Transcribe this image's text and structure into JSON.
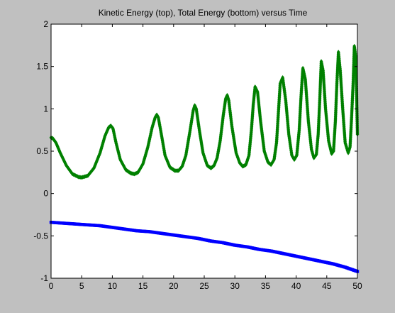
{
  "figure": {
    "background": "#c0c0c0",
    "axes_background": "#ffffff"
  },
  "chart_data": {
    "type": "line",
    "title": "Kinetic Energy (top), Total Energy (bottom) versus Time",
    "xlabel": "",
    "ylabel": "",
    "xlim": [
      0,
      50
    ],
    "ylim": [
      -1,
      2
    ],
    "xticks": [
      "0",
      "5",
      "10",
      "15",
      "20",
      "25",
      "30",
      "35",
      "40",
      "45",
      "50"
    ],
    "yticks": [
      "-1",
      "-0.5",
      "0",
      "0.5",
      "1",
      "1.5",
      "2"
    ],
    "grid": false,
    "legend": "none",
    "series": [
      {
        "color": "#008000",
        "marker": "diamond",
        "x": [
          0.0,
          0.3,
          0.8,
          1.5,
          2.5,
          3.5,
          4.5,
          5.0,
          6.0,
          7.0,
          8.0,
          8.8,
          9.4,
          9.75,
          10.1,
          10.6,
          11.3,
          12.2,
          13.0,
          13.6,
          14.2,
          15.0,
          15.8,
          16.5,
          17.0,
          17.25,
          17.5,
          18.0,
          18.6,
          19.4,
          20.2,
          20.8,
          21.4,
          22.0,
          22.7,
          23.2,
          23.45,
          23.7,
          24.2,
          24.8,
          25.5,
          26.1,
          26.6,
          27.1,
          27.6,
          28.1,
          28.5,
          28.75,
          29.0,
          29.5,
          30.2,
          30.8,
          31.3,
          31.8,
          32.3,
          32.7,
          33.0,
          33.3,
          33.7,
          34.2,
          34.8,
          35.4,
          35.9,
          36.4,
          36.8,
          37.1,
          37.4,
          37.8,
          38.3,
          38.8,
          39.3,
          39.7,
          40.1,
          40.5,
          40.8,
          41.1,
          41.5,
          42.0,
          42.5,
          42.9,
          43.3,
          43.6,
          43.85,
          44.1,
          44.4,
          44.8,
          45.3,
          45.8,
          46.1,
          46.4,
          46.65,
          46.9,
          47.2,
          47.6,
          48.0,
          48.5,
          48.8,
          49.05,
          49.3,
          49.5,
          49.75,
          50.0
        ],
        "y": [
          0.66,
          0.65,
          0.6,
          0.48,
          0.33,
          0.23,
          0.195,
          0.19,
          0.21,
          0.3,
          0.48,
          0.68,
          0.78,
          0.8,
          0.77,
          0.6,
          0.4,
          0.28,
          0.24,
          0.23,
          0.25,
          0.35,
          0.55,
          0.78,
          0.9,
          0.93,
          0.9,
          0.7,
          0.45,
          0.31,
          0.27,
          0.27,
          0.32,
          0.45,
          0.75,
          0.98,
          1.04,
          1.0,
          0.75,
          0.48,
          0.33,
          0.3,
          0.33,
          0.42,
          0.62,
          0.92,
          1.12,
          1.16,
          1.1,
          0.8,
          0.48,
          0.36,
          0.32,
          0.34,
          0.45,
          0.75,
          1.05,
          1.26,
          1.2,
          0.85,
          0.5,
          0.37,
          0.34,
          0.4,
          0.6,
          0.95,
          1.3,
          1.37,
          1.1,
          0.7,
          0.45,
          0.4,
          0.45,
          0.75,
          1.15,
          1.48,
          1.35,
          0.85,
          0.52,
          0.42,
          0.46,
          0.7,
          1.1,
          1.56,
          1.45,
          1.0,
          0.62,
          0.47,
          0.5,
          0.85,
          1.3,
          1.67,
          1.45,
          1.0,
          0.6,
          0.48,
          0.55,
          0.9,
          1.3,
          1.74,
          1.6,
          0.7
        ]
      },
      {
        "color": "#0000ff",
        "marker": "square",
        "x": [
          0,
          2,
          4,
          6,
          8,
          10,
          12,
          14,
          16,
          18,
          20,
          22,
          24,
          26,
          28,
          30,
          32,
          34,
          36,
          38,
          40,
          42,
          44,
          46,
          48,
          50
        ],
        "y": [
          -0.34,
          -0.35,
          -0.36,
          -0.37,
          -0.38,
          -0.4,
          -0.42,
          -0.44,
          -0.45,
          -0.47,
          -0.49,
          -0.51,
          -0.53,
          -0.56,
          -0.58,
          -0.61,
          -0.63,
          -0.66,
          -0.68,
          -0.71,
          -0.74,
          -0.77,
          -0.8,
          -0.83,
          -0.87,
          -0.92
        ]
      }
    ]
  }
}
